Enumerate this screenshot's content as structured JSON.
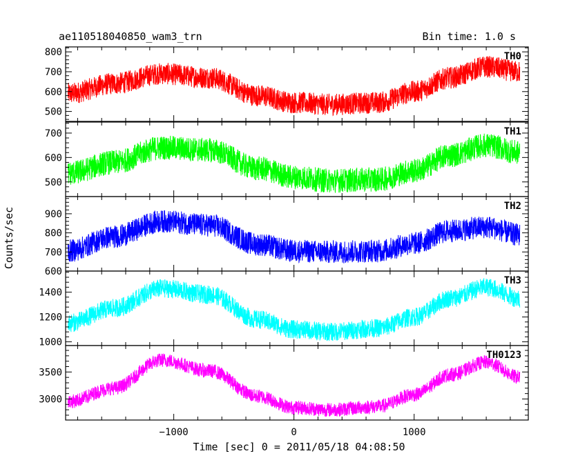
{
  "header": {
    "left_title": "ae110518040850_wam3_trn",
    "right_title": "Bin time: 1.0 s"
  },
  "chart_data": {
    "type": "line",
    "title": "ae110518040850_wam3_trn",
    "subtitle": "Bin time: 1.0 s",
    "xlabel": "Time [sec] 0 = 2011/05/18 04:08:50",
    "ylabel": "Counts/sec",
    "xlim": [
      -1900,
      1950
    ],
    "x_ticks": [
      -1000,
      0,
      1000
    ],
    "x_tick_labels": [
      "−1000",
      "0",
      "1000"
    ],
    "grid": false,
    "x_range_data": [
      -1880,
      1880
    ],
    "bin_time_s": 1.0,
    "panels": [
      {
        "name": "TH0",
        "color": "#ff0000",
        "ylim": [
          450,
          825
        ],
        "y_ticks": [
          500,
          600,
          700,
          800
        ],
        "trend": {
          "x": [
            -1880,
            -1500,
            -1100,
            -700,
            -300,
            0,
            300,
            700,
            1000,
            1300,
            1600,
            1880
          ],
          "y": [
            590,
            640,
            690,
            670,
            580,
            545,
            535,
            545,
            600,
            670,
            725,
            700
          ]
        },
        "noise_amplitude": 55
      },
      {
        "name": "TH1",
        "color": "#00ff00",
        "ylim": [
          440,
          745
        ],
        "y_ticks": [
          500,
          600,
          700
        ],
        "trend": {
          "x": [
            -1880,
            -1500,
            -1100,
            -700,
            -300,
            0,
            300,
            700,
            1000,
            1300,
            1600,
            1880
          ],
          "y": [
            535,
            580,
            640,
            630,
            555,
            520,
            505,
            510,
            545,
            610,
            650,
            620
          ]
        },
        "noise_amplitude": 50
      },
      {
        "name": "TH2",
        "color": "#0000ff",
        "ylim": [
          600,
          990
        ],
        "y_ticks": [
          600,
          700,
          800,
          900
        ],
        "trend": {
          "x": [
            -1880,
            -1500,
            -1100,
            -700,
            -300,
            0,
            300,
            700,
            1000,
            1300,
            1600,
            1880
          ],
          "y": [
            705,
            780,
            860,
            840,
            740,
            705,
            700,
            705,
            745,
            810,
            830,
            790
          ]
        },
        "noise_amplitude": 60
      },
      {
        "name": "TH3",
        "color": "#00ffff",
        "ylim": [
          970,
          1570
        ],
        "y_ticks": [
          1000,
          1200,
          1400
        ],
        "trend": {
          "x": [
            -1880,
            -1500,
            -1100,
            -700,
            -300,
            0,
            300,
            700,
            1000,
            1300,
            1600,
            1880
          ],
          "y": [
            1150,
            1270,
            1430,
            1380,
            1180,
            1100,
            1080,
            1110,
            1200,
            1350,
            1440,
            1350
          ]
        },
        "noise_amplitude": 75
      },
      {
        "name": "TH0123",
        "color": "#ff00ff",
        "ylim": [
          2610,
          3990
        ],
        "y_ticks": [
          3000,
          3500
        ],
        "trend": {
          "x": [
            -1880,
            -1500,
            -1100,
            -700,
            -300,
            0,
            300,
            700,
            1000,
            1300,
            1600,
            1880
          ],
          "y": [
            2950,
            3200,
            3720,
            3520,
            3050,
            2840,
            2800,
            2860,
            3080,
            3450,
            3680,
            3400
          ]
        },
        "noise_amplitude": 130
      }
    ]
  }
}
